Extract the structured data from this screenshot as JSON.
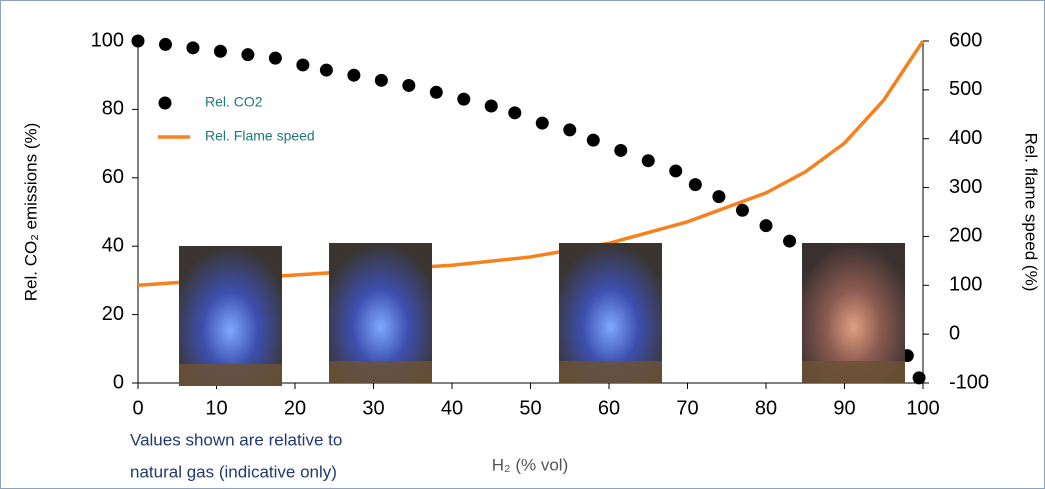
{
  "chart_data": {
    "type": "combo",
    "xlabel": "H₂ (% vol)",
    "ylabel": "Rel. CO₂ emissions (%)",
    "y2label": "Rel. flame speed (%)",
    "annotation": [
      "Values shown are relative to",
      "natural gas (indicative only)"
    ],
    "xlim": [
      0,
      100
    ],
    "xticks": [
      0,
      10,
      20,
      30,
      40,
      50,
      60,
      70,
      80,
      90,
      100
    ],
    "ylim": [
      0,
      100
    ],
    "yticks": [
      0,
      20,
      40,
      60,
      80,
      100
    ],
    "y2lim": [
      -100,
      600
    ],
    "y2ticks": [
      -100,
      0,
      100,
      200,
      300,
      400,
      500,
      600
    ],
    "legend": "upper left",
    "series": [
      {
        "name": "Rel. CO2",
        "type": "scatter",
        "color": "#000000",
        "x": [
          0,
          3.5,
          7,
          10.5,
          14,
          17.5,
          21,
          24,
          27.5,
          31,
          34.5,
          38,
          41.5,
          45,
          48,
          51.5,
          55,
          58,
          61.5,
          65,
          68.5,
          71,
          74,
          77,
          80,
          83,
          98,
          99.5
        ],
        "values": [
          100,
          99,
          98,
          97,
          96,
          95,
          93,
          91.5,
          90,
          88.5,
          87,
          85,
          83,
          81,
          79,
          76,
          74,
          71,
          68,
          65,
          62,
          58,
          54.5,
          50.5,
          46,
          41.5,
          8,
          1.5
        ]
      },
      {
        "name": "Rel. Flame speed",
        "type": "line",
        "axis": "y2",
        "color": "#f5821f",
        "x": [
          0,
          10,
          20,
          30,
          40,
          50,
          60,
          70,
          80,
          85,
          90,
          95,
          100
        ],
        "values": [
          100,
          111,
          121,
          131,
          141,
          158,
          186,
          230,
          289,
          332,
          391,
          479,
          600
        ]
      }
    ]
  }
}
